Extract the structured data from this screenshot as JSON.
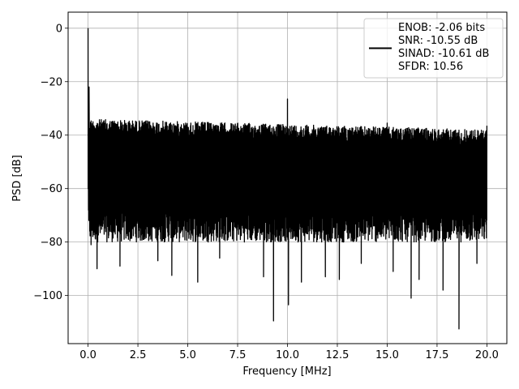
{
  "chart_data": {
    "type": "line",
    "title": "",
    "xlabel": "Frequency [MHz]",
    "ylabel": "PSD [dB]",
    "xlim": [
      -1.0,
      21.0
    ],
    "ylim": [
      -118,
      6
    ],
    "xticks": [
      0.0,
      2.5,
      5.0,
      7.5,
      10.0,
      12.5,
      15.0,
      17.5,
      20.0
    ],
    "xtick_labels": [
      "0.0",
      "2.5",
      "5.0",
      "7.5",
      "10.0",
      "12.5",
      "15.0",
      "17.5",
      "20.0"
    ],
    "yticks": [
      0,
      -20,
      -40,
      -60,
      -80,
      -100
    ],
    "ytick_labels": [
      "0",
      "−20",
      "−40",
      "−60",
      "−80",
      "−100"
    ],
    "grid": true,
    "legend_position": "top-right",
    "legend_lines": [
      "ENOB: -2.06 bits",
      "SNR: -10.55 dB",
      "SINAD: -10.61 dB",
      "SFDR: 10.56"
    ],
    "series": [
      {
        "color": "#000000",
        "description_points": {
          "x_range": [
            0.0,
            20.0
          ],
          "dc_peak": [
            0.0,
            0.0
          ],
          "spur_peaks": [
            [
              0.05,
              -22
            ],
            [
              10.0,
              -26.5
            ],
            [
              15.0,
              -35.5
            ],
            [
              20.0,
              -36.5
            ]
          ],
          "upper_envelope_start": -34,
          "upper_envelope_end": -38,
          "lower_envelope_typical": -80,
          "deep_nulls": [
            [
              0.15,
              -81
            ],
            [
              0.45,
              -90
            ],
            [
              1.6,
              -89
            ],
            [
              3.5,
              -87
            ],
            [
              4.2,
              -92.5
            ],
            [
              5.5,
              -95
            ],
            [
              6.6,
              -86
            ],
            [
              8.8,
              -93
            ],
            [
              9.3,
              -109.5
            ],
            [
              10.05,
              -103.5
            ],
            [
              10.7,
              -95
            ],
            [
              11.9,
              -93
            ],
            [
              12.6,
              -94
            ],
            [
              13.7,
              -88
            ],
            [
              15.3,
              -91
            ],
            [
              16.2,
              -101
            ],
            [
              16.6,
              -94
            ],
            [
              17.8,
              -98
            ],
            [
              18.6,
              -112.5
            ],
            [
              19.5,
              -88
            ]
          ]
        }
      }
    ]
  }
}
